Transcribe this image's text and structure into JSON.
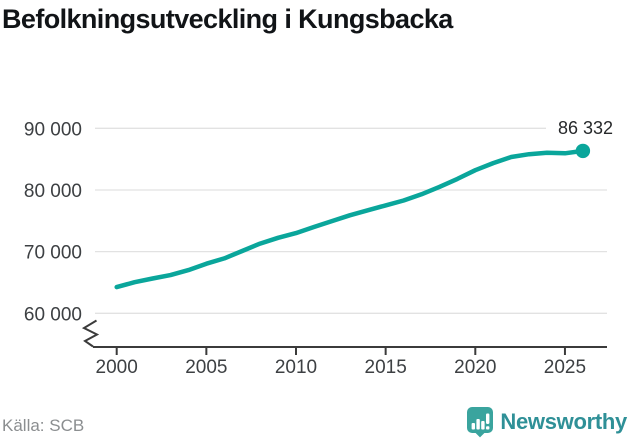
{
  "title": "Befolkningsutveckling i Kungsbacka",
  "source": "Källa: SCB",
  "branding": {
    "name": "Newsworthy",
    "icon": "bar-chart-speech-bubble-icon",
    "icon_color": "#3aa49e",
    "text_color": "#2f9097"
  },
  "chart_data": {
    "type": "line",
    "title": "Befolkningsutveckling i Kungsbacka",
    "xlabel": "",
    "ylabel": "",
    "grid": true,
    "axis_break": true,
    "line_color": "#0aa69b",
    "ylim": [
      57000,
      93000
    ],
    "x_ticks": [
      2000,
      2005,
      2010,
      2015,
      2020,
      2025
    ],
    "y_ticks": [
      {
        "value": 60000,
        "label": "60 000"
      },
      {
        "value": 70000,
        "label": "70 000"
      },
      {
        "value": 80000,
        "label": "80 000"
      },
      {
        "value": 90000,
        "label": "90 000"
      }
    ],
    "x": [
      2000,
      2001,
      2002,
      2003,
      2004,
      2005,
      2006,
      2007,
      2008,
      2009,
      2010,
      2011,
      2012,
      2013,
      2014,
      2015,
      2016,
      2017,
      2018,
      2019,
      2020,
      2021,
      2022,
      2023,
      2024,
      2025,
      2026
    ],
    "series": [
      {
        "name": "Befolkning",
        "values": [
          64250,
          65050,
          65650,
          66200,
          67000,
          68050,
          68900,
          70100,
          71300,
          72250,
          73000,
          74000,
          74950,
          75900,
          76700,
          77500,
          78300,
          79300,
          80500,
          81800,
          83200,
          84350,
          85350,
          85800,
          86050,
          85950,
          86332
        ]
      }
    ],
    "end_value": 86332,
    "end_label": "86 332"
  }
}
